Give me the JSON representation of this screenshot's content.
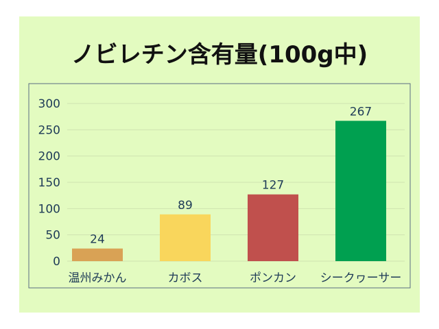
{
  "chart_data": {
    "type": "bar",
    "title": "ノビレチン含有量(100g中)",
    "categories": [
      "温州みかん",
      "カボス",
      "ポンカン",
      "シークヮーサー"
    ],
    "values": [
      24,
      89,
      127,
      267
    ],
    "colors": [
      "#d9a255",
      "#f9d65c",
      "#c0504d",
      "#00a050"
    ],
    "ylim": [
      0,
      300
    ],
    "yticks": [
      "0",
      "50",
      "100",
      "150",
      "200",
      "250",
      "300"
    ],
    "data_labels": [
      "24",
      "89",
      "127",
      "267"
    ],
    "grid": true,
    "legend": "none"
  }
}
